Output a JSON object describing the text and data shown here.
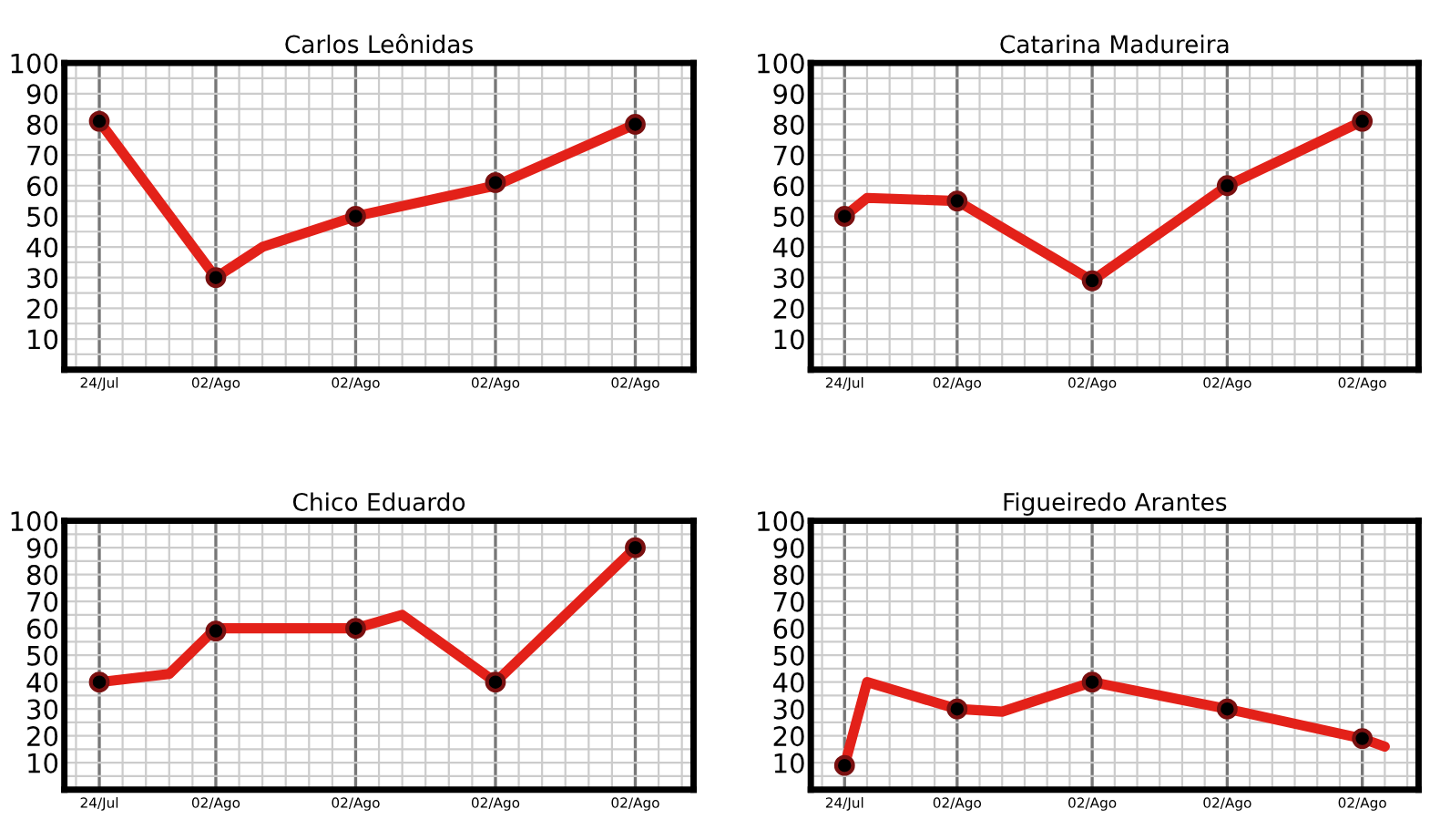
{
  "chart_data": [
    {
      "type": "line",
      "title": "Carlos Leônidas",
      "ylim": [
        0,
        100
      ],
      "grid": true,
      "line_style": "solid",
      "categories": [
        null,
        "24/Jul",
        null,
        null,
        null,
        null,
        "02/Ago",
        null,
        null,
        null,
        null,
        null,
        "02/Ago",
        null,
        null,
        null,
        null,
        null,
        "02/Ago",
        null,
        null,
        null,
        null,
        null,
        "02/Ago",
        null,
        null
      ],
      "yticks": [
        {
          "value": 5,
          "label": null
        },
        10,
        {
          "value": 15,
          "label": null
        },
        20,
        {
          "value": 25,
          "label": null
        },
        30,
        {
          "value": 35,
          "label": null
        },
        40,
        {
          "value": 45,
          "label": null
        },
        50,
        {
          "value": 55,
          "label": null
        },
        60,
        {
          "value": 65,
          "label": null
        },
        70,
        {
          "value": 75,
          "label": null
        },
        80,
        {
          "value": 85,
          "label": null
        },
        90,
        {
          "value": 95,
          "label": null
        },
        100
      ],
      "series": [
        {
          "marker": "none",
          "color": "#e32119",
          "values": [
            null,
            81,
            null,
            null,
            null,
            null,
            30,
            null,
            40,
            null,
            null,
            null,
            50,
            null,
            null,
            null,
            null,
            null,
            60,
            null,
            null,
            null,
            null,
            null,
            80,
            null,
            null
          ]
        },
        {
          "type": "scatter",
          "marker": "circle",
          "color": "#000000",
          "values": [
            null,
            81,
            null,
            null,
            null,
            null,
            30,
            null,
            null,
            null,
            null,
            null,
            50,
            null,
            null,
            null,
            null,
            null,
            61,
            null,
            null,
            null,
            null,
            null,
            80,
            null,
            null
          ]
        }
      ]
    },
    {
      "type": "line",
      "title": "Catarina Madureira",
      "ylim": [
        0,
        100
      ],
      "grid": true,
      "line_style": "solid",
      "categories": [
        null,
        "24/Jul",
        null,
        null,
        null,
        null,
        "02/Ago",
        null,
        null,
        null,
        null,
        null,
        "02/Ago",
        null,
        null,
        null,
        null,
        null,
        "02/Ago",
        null,
        null,
        null,
        null,
        null,
        "02/Ago",
        null,
        null
      ],
      "yticks": [
        {
          "value": 5,
          "label": null
        },
        10,
        {
          "value": 15,
          "label": null
        },
        20,
        {
          "value": 25,
          "label": null
        },
        30,
        {
          "value": 35,
          "label": null
        },
        40,
        {
          "value": 45,
          "label": null
        },
        50,
        {
          "value": 55,
          "label": null
        },
        60,
        {
          "value": 65,
          "label": null
        },
        70,
        {
          "value": 75,
          "label": null
        },
        80,
        {
          "value": 85,
          "label": null
        },
        90,
        {
          "value": 95,
          "label": null
        },
        100
      ],
      "series": [
        {
          "marker": "none",
          "color": "#e32119",
          "values": [
            null,
            50,
            56,
            null,
            null,
            null,
            55,
            null,
            null,
            null,
            null,
            null,
            29,
            null,
            null,
            null,
            null,
            null,
            60,
            null,
            null,
            null,
            null,
            null,
            81,
            null,
            null
          ]
        },
        {
          "type": "scatter",
          "marker": "circle",
          "color": "#000000",
          "values": [
            null,
            50,
            null,
            null,
            null,
            null,
            55,
            null,
            null,
            null,
            null,
            null,
            29,
            null,
            null,
            null,
            null,
            null,
            60,
            null,
            null,
            null,
            null,
            null,
            81,
            null,
            null
          ]
        }
      ]
    },
    {
      "type": "line",
      "title": "Chico Eduardo",
      "ylim": [
        0,
        100
      ],
      "grid": true,
      "line_style": "solid",
      "categories": [
        null,
        "24/Jul",
        null,
        null,
        null,
        null,
        "02/Ago",
        null,
        null,
        null,
        null,
        null,
        "02/Ago",
        null,
        null,
        null,
        null,
        null,
        "02/Ago",
        null,
        null,
        null,
        null,
        null,
        "02/Ago",
        null,
        null
      ],
      "yticks": [
        {
          "value": 5,
          "label": null
        },
        10,
        {
          "value": 15,
          "label": null
        },
        20,
        {
          "value": 25,
          "label": null
        },
        30,
        {
          "value": 35,
          "label": null
        },
        40,
        {
          "value": 45,
          "label": null
        },
        50,
        {
          "value": 55,
          "label": null
        },
        60,
        {
          "value": 65,
          "label": null
        },
        70,
        {
          "value": 75,
          "label": null
        },
        80,
        {
          "value": 85,
          "label": null
        },
        90,
        {
          "value": 95,
          "label": null
        },
        100
      ],
      "series": [
        {
          "marker": "none",
          "color": "#e32119",
          "values": [
            null,
            40,
            null,
            null,
            43,
            null,
            60,
            null,
            null,
            null,
            null,
            null,
            60,
            null,
            65,
            null,
            null,
            null,
            40,
            null,
            null,
            null,
            null,
            null,
            90,
            null,
            null
          ]
        },
        {
          "type": "scatter",
          "marker": "circle",
          "color": "#000000",
          "values": [
            null,
            40,
            null,
            null,
            null,
            null,
            59,
            null,
            null,
            null,
            null,
            null,
            60,
            null,
            null,
            null,
            null,
            null,
            40,
            null,
            null,
            null,
            null,
            null,
            90,
            null,
            null
          ]
        }
      ]
    },
    {
      "type": "line",
      "title": "Figueiredo Arantes",
      "ylim": [
        0,
        100
      ],
      "grid": true,
      "line_style": "solid",
      "categories": [
        null,
        "24/Jul",
        null,
        null,
        null,
        null,
        "02/Ago",
        null,
        null,
        null,
        null,
        null,
        "02/Ago",
        null,
        null,
        null,
        null,
        null,
        "02/Ago",
        null,
        null,
        null,
        null,
        null,
        "02/Ago",
        null,
        null
      ],
      "yticks": [
        {
          "value": 5,
          "label": null
        },
        10,
        {
          "value": 15,
          "label": null
        },
        20,
        {
          "value": 25,
          "label": null
        },
        30,
        {
          "value": 35,
          "label": null
        },
        40,
        {
          "value": 45,
          "label": null
        },
        50,
        {
          "value": 55,
          "label": null
        },
        60,
        {
          "value": 65,
          "label": null
        },
        70,
        {
          "value": 75,
          "label": null
        },
        80,
        {
          "value": 85,
          "label": null
        },
        90,
        {
          "value": 95,
          "label": null
        },
        100
      ],
      "series": [
        {
          "marker": "none",
          "color": "#e32119",
          "values": [
            null,
            9,
            40,
            null,
            null,
            null,
            30,
            null,
            29,
            null,
            null,
            null,
            40,
            null,
            null,
            null,
            null,
            null,
            30,
            null,
            null,
            null,
            null,
            null,
            19,
            16,
            null
          ]
        },
        {
          "type": "scatter",
          "marker": "circle",
          "color": "#000000",
          "values": [
            null,
            9,
            null,
            null,
            null,
            null,
            30,
            null,
            null,
            null,
            null,
            null,
            40,
            null,
            null,
            null,
            null,
            null,
            30,
            null,
            null,
            null,
            null,
            null,
            19,
            null,
            null
          ]
        }
      ]
    }
  ]
}
